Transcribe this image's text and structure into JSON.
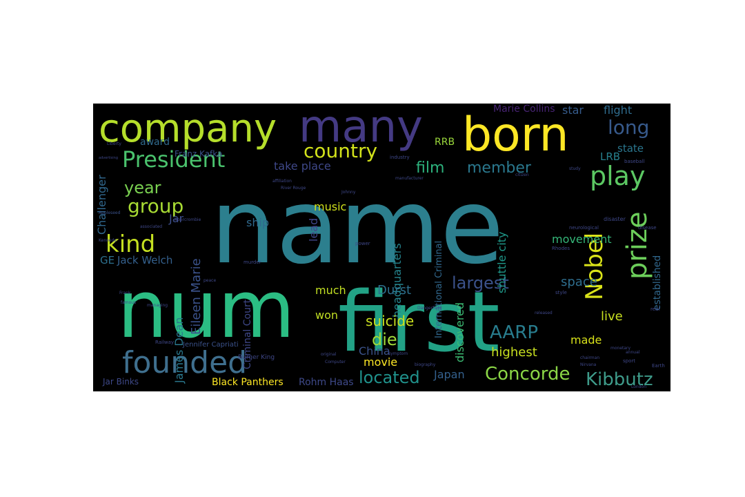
{
  "chart_data": {
    "type": "wordcloud",
    "background": "#000000",
    "words": [
      {
        "text": "name",
        "color": "#2c7f8e"
      },
      {
        "text": "num",
        "color": "#2bbd83"
      },
      {
        "text": "first",
        "color": "#22a286"
      },
      {
        "text": "company",
        "color": "#b5de2b"
      },
      {
        "text": "many",
        "color": "#443a83"
      },
      {
        "text": "born",
        "color": "#fde725"
      },
      {
        "text": "founded",
        "color": "#3f6f8e"
      },
      {
        "text": "country",
        "color": "#d2e21b"
      },
      {
        "text": "President",
        "color": "#4ac26d"
      },
      {
        "text": "long",
        "color": "#375a8c"
      },
      {
        "text": "year",
        "color": "#7ad151"
      },
      {
        "text": "group",
        "color": "#a8db34"
      },
      {
        "text": "kind",
        "color": "#c5e021"
      },
      {
        "text": "play",
        "color": "#5cc863"
      },
      {
        "text": "film",
        "color": "#2db27d"
      },
      {
        "text": "member",
        "color": "#2a788e"
      },
      {
        "text": "prize",
        "color": "#6ccd5a"
      },
      {
        "text": "Nobel",
        "color": "#dae319"
      },
      {
        "text": "largest",
        "color": "#3b528b"
      },
      {
        "text": "located",
        "color": "#20928c"
      },
      {
        "text": "Concorde",
        "color": "#8bd646"
      },
      {
        "text": "Kibbutz",
        "color": "#3e9b8a"
      },
      {
        "text": "AARP",
        "color": "#287d8e"
      },
      {
        "text": "die",
        "color": "#a0da39"
      },
      {
        "text": "Marie Collins",
        "color": "#482475"
      },
      {
        "text": "star",
        "color": "#365c8d"
      },
      {
        "text": "flight",
        "color": "#2f6c8e"
      },
      {
        "text": "state",
        "color": "#2a768e"
      },
      {
        "text": "LRB",
        "color": "#27808e"
      },
      {
        "text": "RRB",
        "color": "#9bd93c"
      },
      {
        "text": "award",
        "color": "#306a8e"
      },
      {
        "text": "Franz Kafka",
        "color": "#3b528b"
      },
      {
        "text": "take place",
        "color": "#3f4889"
      },
      {
        "text": "Challenger",
        "color": "#31688e"
      },
      {
        "text": "Jar",
        "color": "#3d4e8a"
      },
      {
        "text": "music",
        "color": "#d0e11c"
      },
      {
        "text": "lead",
        "color": "#404688"
      },
      {
        "text": "ship",
        "color": "#306a8e"
      },
      {
        "text": "Jack Welch",
        "color": "#34608d"
      },
      {
        "text": "GE",
        "color": "#2d708e"
      },
      {
        "text": "Eileen Marie",
        "color": "#3b528b"
      },
      {
        "text": "James Dean",
        "color": "#2a788e"
      },
      {
        "text": "Criminal Court",
        "color": "#3f4889"
      },
      {
        "text": "headquarters",
        "color": "#25848e"
      },
      {
        "text": "International Criminal",
        "color": "#31688e"
      },
      {
        "text": "movement",
        "color": "#35b779"
      },
      {
        "text": "shuttle city",
        "color": "#1f998a"
      },
      {
        "text": "space",
        "color": "#2e6e8e"
      },
      {
        "text": "much",
        "color": "#c2df23"
      },
      {
        "text": "Durst",
        "color": "#2d708e"
      },
      {
        "text": "won",
        "color": "#c2df23"
      },
      {
        "text": "suicide",
        "color": "#cae11f"
      },
      {
        "text": "China",
        "color": "#3b528b"
      },
      {
        "text": "discovered",
        "color": "#3dbc74"
      },
      {
        "text": "highest",
        "color": "#c8e020"
      },
      {
        "text": "live",
        "color": "#c8e020"
      },
      {
        "text": "made",
        "color": "#d8e219"
      },
      {
        "text": "established",
        "color": "#31688e"
      },
      {
        "text": "movie",
        "color": "#fde725"
      },
      {
        "text": "Japan",
        "color": "#34608d"
      },
      {
        "text": "Jar Binks",
        "color": "#3e4989"
      },
      {
        "text": "Black Panthers",
        "color": "#fde725"
      },
      {
        "text": "Rohm Haas",
        "color": "#3e4989"
      },
      {
        "text": "Jennifer Capriati",
        "color": "#3b528b"
      },
      {
        "text": "Burger King",
        "color": "#3f4889"
      },
      {
        "text": "Liberty",
        "color": "#3e4989"
      },
      {
        "text": "Appleseed",
        "color": "#3b528b"
      },
      {
        "text": "Abercrombie",
        "color": "#3f4889"
      },
      {
        "text": "industry",
        "color": "#3f4889"
      },
      {
        "text": "Johnny",
        "color": "#3f4889"
      },
      {
        "text": "power",
        "color": "#3f4889"
      },
      {
        "text": "citizen",
        "color": "#3f4889"
      },
      {
        "text": "disaster",
        "color": "#3f4889"
      },
      {
        "text": "neurological",
        "color": "#3f4889"
      },
      {
        "text": "disease",
        "color": "#3f4889"
      },
      {
        "text": "baseball",
        "color": "#3f4889"
      },
      {
        "text": "Rhodes",
        "color": "#3f4889"
      },
      {
        "text": "murder",
        "color": "#3f4889"
      },
      {
        "text": "biography",
        "color": "#3f4889"
      },
      {
        "text": "Computer",
        "color": "#3f4889"
      },
      {
        "text": "Railway",
        "color": "#3f4889"
      },
      {
        "text": "released",
        "color": "#3f4889"
      },
      {
        "text": "London",
        "color": "#3f4889"
      },
      {
        "text": "sport",
        "color": "#3f4889"
      },
      {
        "text": "chairman",
        "color": "#3f4889"
      },
      {
        "text": "annual",
        "color": "#3f4889"
      },
      {
        "text": "monetary",
        "color": "#3f4889"
      },
      {
        "text": "Earth",
        "color": "#3f4889"
      },
      {
        "text": "Nirvana",
        "color": "#3f4889"
      },
      {
        "text": "Dangerfield",
        "color": "#3f4889"
      },
      {
        "text": "manufacturer",
        "color": "#3f4889"
      },
      {
        "text": "affiliation",
        "color": "#3f4889"
      },
      {
        "text": "River Rouge",
        "color": "#3f4889"
      },
      {
        "text": "advertising",
        "color": "#3f4889"
      },
      {
        "text": "associated",
        "color": "#3f4889"
      },
      {
        "text": "Frank",
        "color": "#3f4889"
      },
      {
        "text": "famous",
        "color": "#3f4889"
      },
      {
        "text": "managing",
        "color": "#3f4889"
      },
      {
        "text": "original",
        "color": "#3f4889"
      },
      {
        "text": "symptom",
        "color": "#3f4889"
      },
      {
        "text": "style",
        "color": "#3f4889"
      },
      {
        "text": "study",
        "color": "#3f4889"
      },
      {
        "text": "real",
        "color": "#3f4889"
      },
      {
        "text": "peace",
        "color": "#3f4889"
      },
      {
        "text": "Kennedy",
        "color": "#3f4889"
      }
    ]
  }
}
